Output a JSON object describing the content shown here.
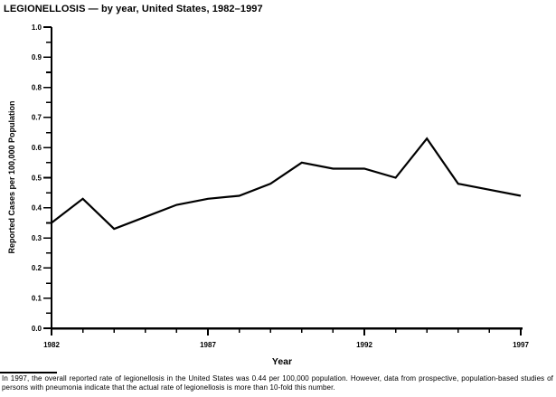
{
  "page": {
    "background": "#ffffff",
    "foreground": "#000000"
  },
  "chart_data": {
    "type": "line",
    "title": "LEGIONELLOSIS — by year, United States, 1982–1997",
    "xlabel": "Year",
    "ylabel": "Reported Cases per 100,000 Population",
    "x": [
      1982,
      1983,
      1984,
      1985,
      1986,
      1987,
      1988,
      1989,
      1990,
      1991,
      1992,
      1993,
      1994,
      1995,
      1996,
      1997
    ],
    "values": [
      0.35,
      0.43,
      0.33,
      0.37,
      0.41,
      0.43,
      0.44,
      0.48,
      0.55,
      0.53,
      0.53,
      0.5,
      0.63,
      0.48,
      0.46,
      0.44
    ],
    "ylim": [
      0.0,
      1.0
    ],
    "y_major_step": 0.1,
    "y_minor_step": 0.05,
    "y_label_decimals": 1,
    "x_labeled_ticks": [
      1982,
      1987,
      1992,
      1997
    ],
    "grid": false,
    "legend": "none",
    "line_color": "#000000"
  },
  "footnote": "In 1997, the overall reported rate of legionellosis in the United States was 0.44 per 100,000 population. However, data from prospective, population-based studies of persons with pneumonia indicate that the actual rate of legionellosis is more than 10-fold this number."
}
